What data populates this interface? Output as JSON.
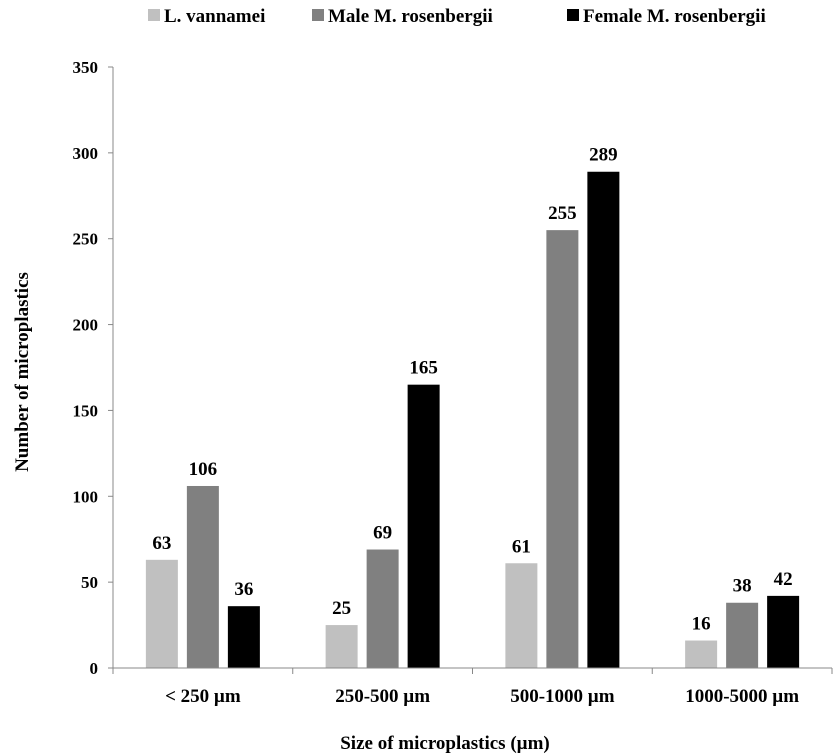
{
  "chart_data": {
    "type": "bar",
    "title": "",
    "xlabel": "Size of microplastics  (µm)",
    "ylabel": "Number  of microplastics",
    "ylim": [
      0,
      350
    ],
    "yticks": [
      "0",
      "50",
      "100",
      "150",
      "200",
      "250",
      "300",
      "350"
    ],
    "categories": [
      "< 250 µm",
      "250-500 µm",
      "500-1000 µm",
      "1000-5000 µm"
    ],
    "series": [
      {
        "name": "L. vannamei",
        "color": "#c0c0c0",
        "values": [
          63,
          25,
          61,
          16
        ]
      },
      {
        "name": "Male M. rosenbergii",
        "color": "#808080",
        "values": [
          106,
          69,
          255,
          38
        ]
      },
      {
        "name": "Female M. rosenbergii",
        "color": "#000000",
        "values": [
          36,
          165,
          289,
          42
        ]
      }
    ],
    "grid": false,
    "legend": "top"
  }
}
